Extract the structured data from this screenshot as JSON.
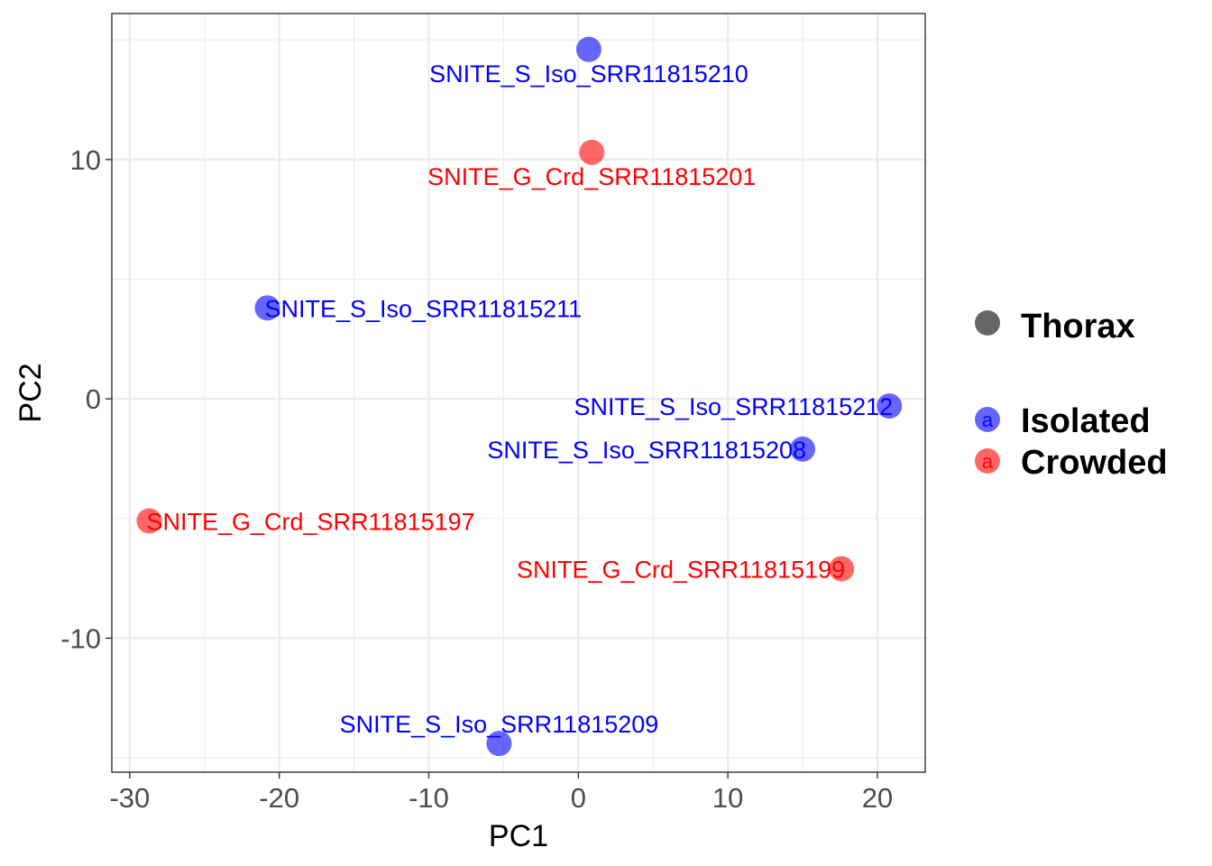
{
  "chart_data": {
    "type": "scatter",
    "title": "",
    "xlabel": "PC1",
    "ylabel": "PC2",
    "xlim": [
      -31.2,
      23.2
    ],
    "ylim": [
      -15.6,
      16.1
    ],
    "x_ticks": [
      -30,
      -20,
      -10,
      0,
      10,
      20
    ],
    "y_ticks": [
      -10,
      0,
      10
    ],
    "grid": true,
    "legend_position": "right",
    "legend": {
      "shape_title": "Thorax",
      "groups": [
        {
          "name": "Isolated",
          "color": "#0000ff",
          "key_text": "a"
        },
        {
          "name": "Crowded",
          "color": "#ff0000",
          "key_text": "a"
        }
      ]
    },
    "points": [
      {
        "label": "SNITE_S_Iso_SRR11815210",
        "group": "Isolated",
        "x": 0.7,
        "y": 14.6,
        "label_anchor": "below"
      },
      {
        "label": "SNITE_G_Crd_SRR11815201",
        "group": "Crowded",
        "x": 0.9,
        "y": 10.3,
        "label_anchor": "below"
      },
      {
        "label": "SNITE_S_Iso_SRR11815211",
        "group": "Isolated",
        "x": -20.8,
        "y": 3.8,
        "label_anchor": "right"
      },
      {
        "label": "SNITE_S_Iso_SRR11815212",
        "group": "Isolated",
        "x": 20.8,
        "y": -0.3,
        "label_anchor": "left"
      },
      {
        "label": "SNITE_S_Iso_SRR11815208",
        "group": "Isolated",
        "x": 15.0,
        "y": -2.1,
        "label_anchor": "left"
      },
      {
        "label": "SNITE_G_Crd_SRR11815197",
        "group": "Crowded",
        "x": -28.7,
        "y": -5.1,
        "label_anchor": "right"
      },
      {
        "label": "SNITE_G_Crd_SRR11815199",
        "group": "Crowded",
        "x": 17.6,
        "y": -7.1,
        "label_anchor": "left"
      },
      {
        "label": "SNITE_S_Iso_SRR11815209",
        "group": "Isolated",
        "x": -5.3,
        "y": -14.4,
        "label_anchor": "above"
      }
    ]
  }
}
